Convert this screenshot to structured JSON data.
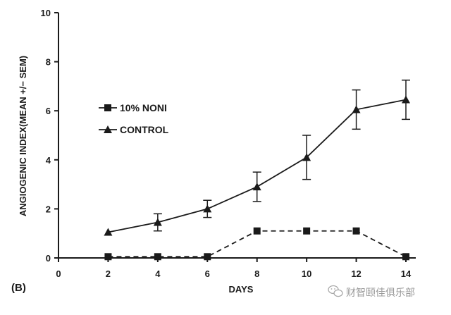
{
  "chart_data": {
    "type": "line",
    "panel_label": "(B)",
    "xlabel": "DAYS",
    "ylabel": "ANGIOGENIC INDEX(MEAN +/− SEM)",
    "xlim": [
      0,
      14
    ],
    "ylim": [
      0,
      10
    ],
    "xticks": [
      0,
      2,
      4,
      6,
      8,
      10,
      12,
      14
    ],
    "yticks": [
      0,
      2,
      4,
      6,
      8,
      10
    ],
    "grid": false,
    "legend_position": "upper-left",
    "series": [
      {
        "name": "10% NONI",
        "marker": "square",
        "line_style": "dashed",
        "points": [
          {
            "x": 2,
            "y": 0.05
          },
          {
            "x": 4,
            "y": 0.05
          },
          {
            "x": 6,
            "y": 0.05
          },
          {
            "x": 8,
            "y": 1.1
          },
          {
            "x": 10,
            "y": 1.1
          },
          {
            "x": 12,
            "y": 1.1
          },
          {
            "x": 14,
            "y": 0.05
          }
        ]
      },
      {
        "name": "CONTROL",
        "marker": "triangle",
        "line_style": "solid",
        "points": [
          {
            "x": 2,
            "y": 1.05
          },
          {
            "x": 4,
            "y": 1.45,
            "err": 0.35
          },
          {
            "x": 6,
            "y": 2.0,
            "err": 0.35
          },
          {
            "x": 8,
            "y": 2.9,
            "err": 0.6
          },
          {
            "x": 10,
            "y": 4.1,
            "err": 0.9
          },
          {
            "x": 12,
            "y": 6.05,
            "err": 0.8
          },
          {
            "x": 14,
            "y": 6.45,
            "err": 0.8
          }
        ]
      }
    ]
  },
  "watermark": {
    "icon": "wechat-icon",
    "text": "财智颐佳俱乐部"
  }
}
